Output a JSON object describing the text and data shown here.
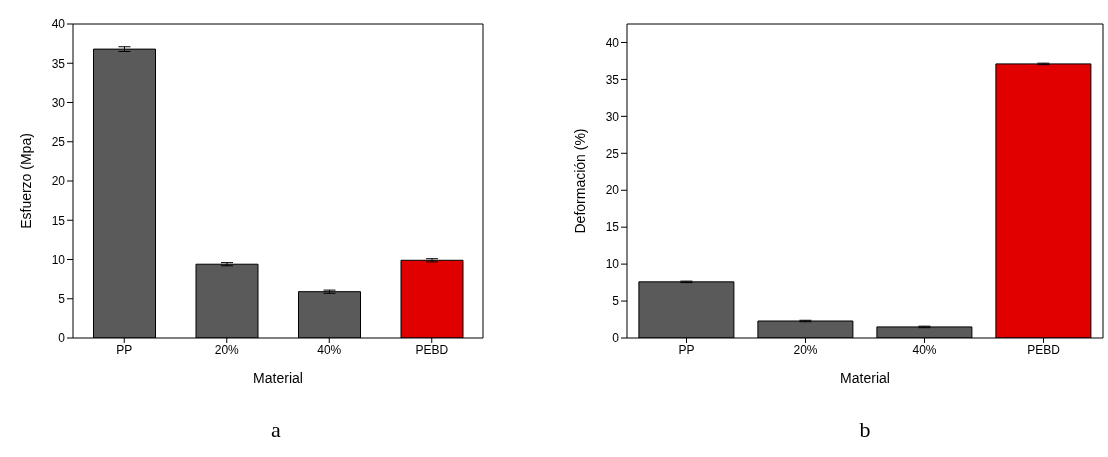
{
  "chart_data": [
    {
      "type": "bar",
      "xlabel": "Material",
      "ylabel": "Esfuerzo (Mpa)",
      "categories": [
        "PP",
        "20%",
        "40%",
        "PEBD"
      ],
      "values": [
        36.8,
        9.4,
        5.9,
        9.9
      ],
      "errors": [
        0.3,
        0.2,
        0.2,
        0.2
      ],
      "colors": [
        "#5a5a5a",
        "#5a5a5a",
        "#5a5a5a",
        "#e00000"
      ],
      "ylim": [
        0,
        40
      ],
      "yticks": [
        0,
        5,
        10,
        15,
        20,
        25,
        30,
        35,
        40
      ],
      "grid": false,
      "legend": false,
      "annotations": [
        "a"
      ]
    },
    {
      "type": "bar",
      "xlabel": "Material",
      "ylabel": "Deformación (%)",
      "categories": [
        "PP",
        "20%",
        "40%",
        "PEBD"
      ],
      "values": [
        7.6,
        2.3,
        1.5,
        37.1
      ],
      "errors": [
        0.1,
        0.1,
        0.1,
        0.1
      ],
      "colors": [
        "#5a5a5a",
        "#5a5a5a",
        "#5a5a5a",
        "#e00000"
      ],
      "ylim": [
        0,
        42.5
      ],
      "yticks": [
        0,
        5,
        10,
        15,
        20,
        25,
        30,
        35,
        40
      ],
      "grid": false,
      "legend": false,
      "annotations": [
        "b"
      ]
    }
  ]
}
